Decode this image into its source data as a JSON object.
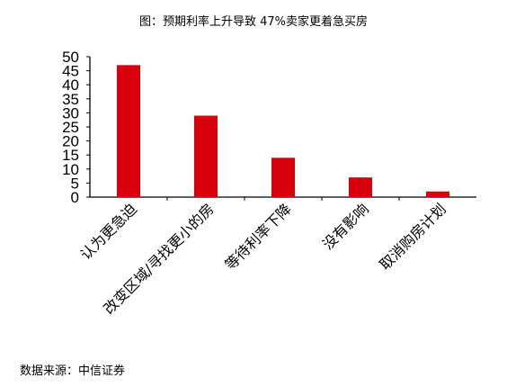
{
  "chart_data": {
    "type": "bar",
    "title": "图：预期利率上升导致 47%卖家更着急买房",
    "categories": [
      "认为更急迫",
      "改变区域/寻找更小的房",
      "等待利率下降",
      "没有影响",
      "取消购房计划"
    ],
    "values": [
      47,
      29,
      14,
      7,
      2
    ],
    "xlabel": "",
    "ylabel": "",
    "ylim": [
      0,
      50
    ],
    "yticks": [
      0,
      5,
      10,
      15,
      20,
      25,
      30,
      35,
      40,
      45,
      50
    ],
    "grid": false,
    "bar_color": "#d9000d"
  },
  "source_note": "数据来源：中信证券"
}
